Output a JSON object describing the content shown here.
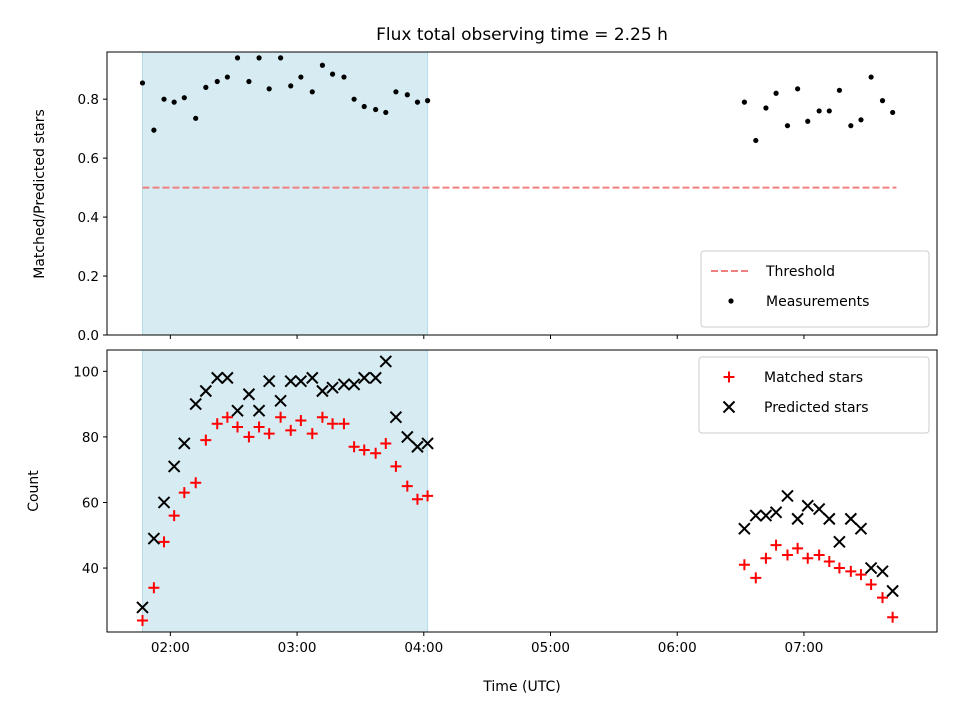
{
  "chart_data": [
    {
      "type": "scatter",
      "title": "Flux total observing time = 2.25 h",
      "xlabel": "",
      "ylabel": "Matched/Predicted stars",
      "ylim": [
        0,
        0.96
      ],
      "yticks": [
        0.0,
        0.2,
        0.4,
        0.6,
        0.8
      ],
      "ytick_labels": [
        "0.0",
        "0.2",
        "0.4",
        "0.6",
        "0.8"
      ],
      "xlim": [
        1.5,
        8.05
      ],
      "xticks": [
        2,
        3,
        4,
        5,
        6,
        7
      ],
      "highlight_span": {
        "x0": 1.78,
        "x1": 4.03,
        "color": "#add8e6"
      },
      "legend_position": "lower-right",
      "threshold": {
        "name": "Threshold",
        "value": 0.5,
        "x_start": 1.78,
        "x_end": 7.73,
        "color": "#f08080"
      },
      "series": [
        {
          "name": "Measurements",
          "color": "#000000",
          "marker": "dot",
          "x": [
            1.78,
            1.87,
            1.95,
            2.03,
            2.11,
            2.2,
            2.28,
            2.37,
            2.45,
            2.53,
            2.62,
            2.7,
            2.78,
            2.87,
            2.95,
            3.03,
            3.12,
            3.2,
            3.28,
            3.37,
            3.45,
            3.53,
            3.62,
            3.7,
            3.78,
            3.87,
            3.95,
            4.03,
            6.53,
            6.62,
            6.7,
            6.78,
            6.87,
            6.95,
            7.03,
            7.12,
            7.2,
            7.28,
            7.37,
            7.45,
            7.53,
            7.62,
            7.7
          ],
          "y": [
            0.855,
            0.695,
            0.8,
            0.79,
            0.805,
            0.735,
            0.84,
            0.86,
            0.875,
            0.94,
            0.86,
            0.94,
            0.835,
            0.94,
            0.845,
            0.875,
            0.825,
            0.915,
            0.885,
            0.875,
            0.8,
            0.775,
            0.765,
            0.755,
            0.825,
            0.815,
            0.79,
            0.795,
            0.79,
            0.66,
            0.77,
            0.82,
            0.71,
            0.835,
            0.725,
            0.76,
            0.76,
            0.83,
            0.71,
            0.73,
            0.875,
            0.795,
            0.755
          ]
        }
      ]
    },
    {
      "type": "scatter",
      "title": "",
      "xlabel": "Time (UTC)",
      "ylabel": "Count",
      "ylim": [
        20.5,
        106.5
      ],
      "yticks": [
        40,
        60,
        80,
        100
      ],
      "ytick_labels": [
        "40",
        "60",
        "80",
        "100"
      ],
      "xlim": [
        1.5,
        8.05
      ],
      "xticks": [
        2,
        3,
        4,
        5,
        6,
        7
      ],
      "xtick_labels": [
        "02:00",
        "03:00",
        "04:00",
        "05:00",
        "06:00",
        "07:00"
      ],
      "highlight_span": {
        "x0": 1.78,
        "x1": 4.03,
        "color": "#add8e6"
      },
      "legend_position": "upper-right",
      "series": [
        {
          "name": "Matched stars",
          "color": "#ff0000",
          "marker": "plus",
          "x": [
            1.78,
            1.87,
            1.95,
            2.03,
            2.11,
            2.2,
            2.28,
            2.37,
            2.45,
            2.53,
            2.62,
            2.7,
            2.78,
            2.87,
            2.95,
            3.03,
            3.12,
            3.2,
            3.28,
            3.37,
            3.45,
            3.53,
            3.62,
            3.7,
            3.78,
            3.87,
            3.95,
            4.03,
            6.53,
            6.62,
            6.7,
            6.78,
            6.87,
            6.95,
            7.03,
            7.12,
            7.2,
            7.28,
            7.37,
            7.45,
            7.53,
            7.62,
            7.7
          ],
          "y": [
            24,
            34,
            48,
            56,
            63,
            66,
            79,
            84,
            86,
            83,
            80,
            83,
            81,
            86,
            82,
            85,
            81,
            86,
            84,
            84,
            77,
            76,
            75,
            78,
            71,
            65,
            61,
            62,
            41,
            37,
            43,
            47,
            44,
            46,
            43,
            44,
            42,
            40,
            39,
            38,
            35,
            31,
            25
          ]
        },
        {
          "name": "Predicted stars",
          "color": "#000000",
          "marker": "x",
          "x": [
            1.78,
            1.87,
            1.95,
            2.03,
            2.11,
            2.2,
            2.28,
            2.37,
            2.45,
            2.53,
            2.62,
            2.7,
            2.78,
            2.87,
            2.95,
            3.03,
            3.12,
            3.2,
            3.28,
            3.37,
            3.45,
            3.53,
            3.62,
            3.7,
            3.78,
            3.87,
            3.95,
            4.03,
            6.53,
            6.62,
            6.7,
            6.78,
            6.87,
            6.95,
            7.03,
            7.12,
            7.2,
            7.28,
            7.37,
            7.45,
            7.53,
            7.62,
            7.7
          ],
          "y": [
            28,
            49,
            60,
            71,
            78,
            90,
            94,
            98,
            98,
            88,
            93,
            88,
            97,
            91,
            97,
            97,
            98,
            94,
            95,
            96,
            96,
            98,
            98,
            103,
            86,
            80,
            77,
            78,
            52,
            56,
            56,
            57,
            62,
            55,
            59,
            58,
            55,
            48,
            55,
            52,
            40,
            39,
            33
          ]
        }
      ]
    }
  ]
}
